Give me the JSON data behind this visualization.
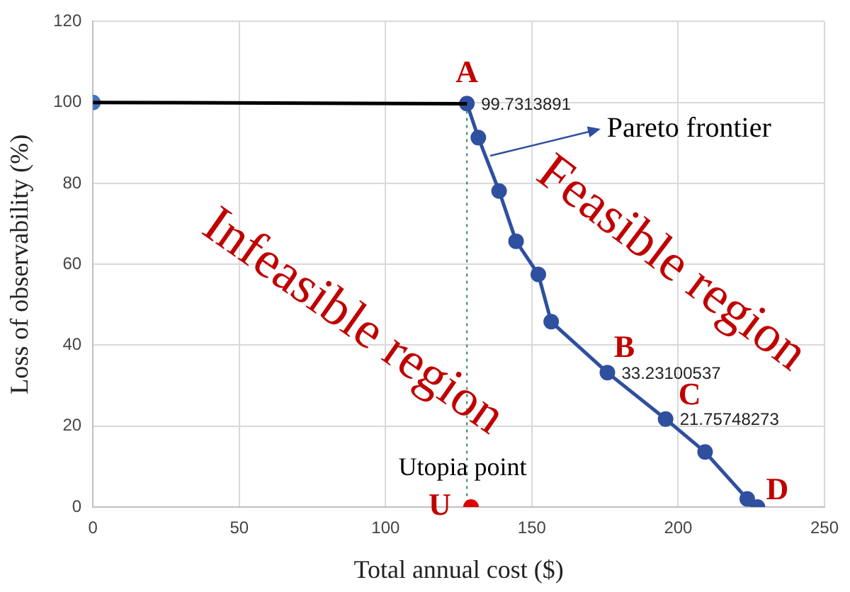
{
  "chart_data": {
    "type": "line",
    "xlabel": "Total annual cost ($)",
    "ylabel": "Loss of observability (%)",
    "xlim": [
      0,
      250
    ],
    "xticks": [
      0,
      50,
      100,
      150,
      200,
      250
    ],
    "ylim": [
      0,
      120
    ],
    "yticks": [
      0,
      20,
      40,
      60,
      80,
      100,
      120
    ],
    "grid": true,
    "legend": false,
    "series": [
      {
        "type": "line",
        "color": "#000000",
        "marker": "none",
        "x": [
          0,
          127.8
        ],
        "values": [
          100,
          99.7
        ]
      },
      {
        "type": "scatter",
        "color": "#4472c4",
        "marker": "circle",
        "x": [
          0
        ],
        "values": [
          100
        ]
      },
      {
        "type": "line",
        "color": "#2f4f9f",
        "marker": "circle",
        "x": [
          127.8,
          131.7,
          138.8,
          144.6,
          152.2,
          156.6,
          175.8,
          195.7,
          209.2,
          223.6,
          227.1
        ],
        "values": [
          99.7313891,
          91.3,
          78.1,
          65.7,
          57.5,
          45.8,
          33.23100537,
          21.75748273,
          13.6,
          2.0,
          0
        ],
        "value_labels": [
          "99.7313891",
          null,
          null,
          null,
          null,
          null,
          "33.23100537",
          "21.75748273",
          null,
          null,
          null
        ]
      },
      {
        "type": "scatter",
        "color": "#e00000",
        "marker": "circle",
        "x": [
          129.2
        ],
        "values": [
          0
        ]
      },
      {
        "type": "line",
        "color": "#2e8b57",
        "marker": "none",
        "line_style": "dotted",
        "x": [
          127.8,
          127.8
        ],
        "values": [
          99.7,
          0
        ]
      }
    ],
    "annotations": [
      {
        "text": "A",
        "x": 127.8,
        "y": 99.7313891
      },
      {
        "text": "B",
        "x": 175.8,
        "y": 33.23100537
      },
      {
        "text": "C",
        "x": 195.7,
        "y": 21.75748273
      },
      {
        "text": "D",
        "x": 227.1,
        "y": 0
      },
      {
        "text": "U",
        "x": 129.2,
        "y": 0
      },
      {
        "text": "Utopia point",
        "x": 129.2,
        "y": 0
      },
      {
        "text": "Pareto frontier",
        "x": 135.9,
        "y": 86.7
      },
      "Infeasible region",
      "Feasible region"
    ]
  }
}
